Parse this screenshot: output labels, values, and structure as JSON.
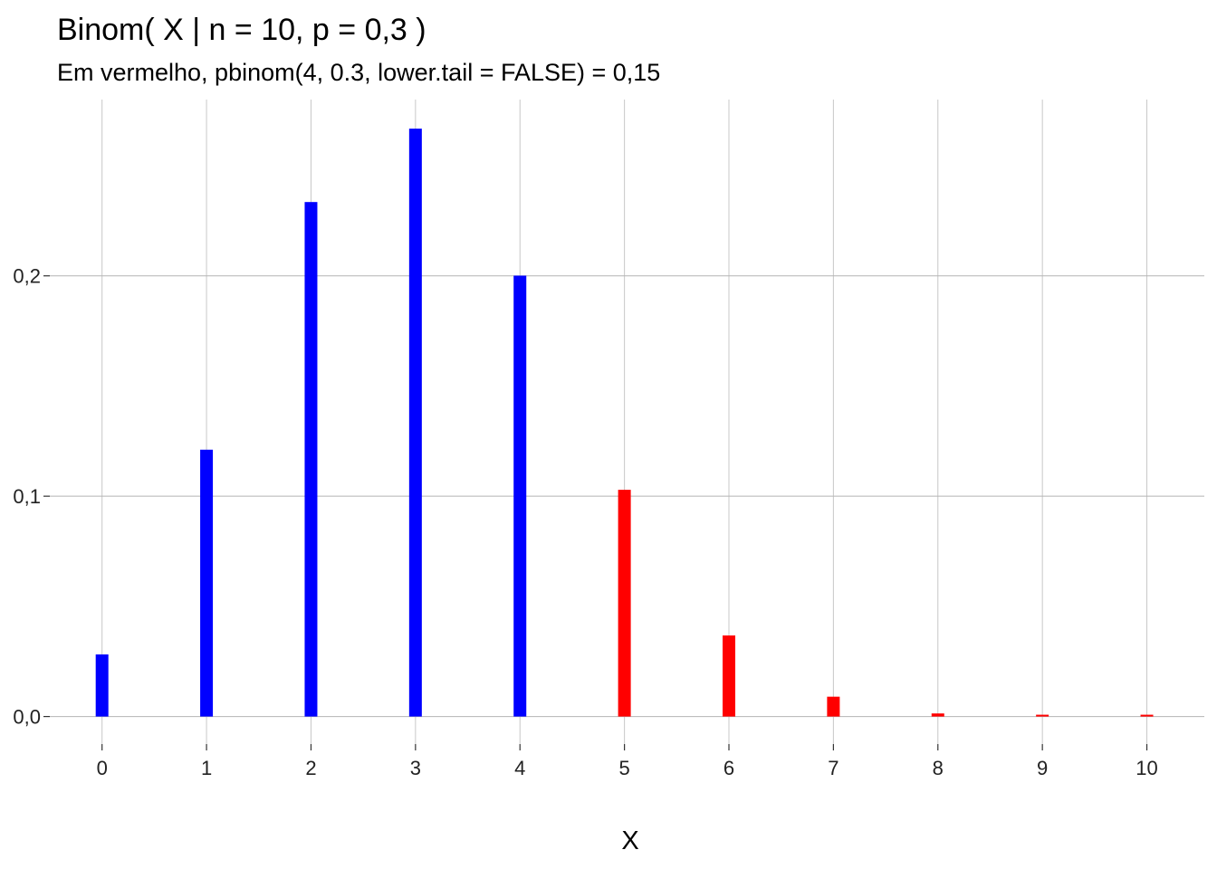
{
  "chart_data": {
    "type": "bar",
    "title": "Binom( X | n = 10, p = 0,3 )",
    "subtitle": "Em vermelho, pbinom(4, 0.3, lower.tail = FALSE) = 0,15",
    "xlabel": "X",
    "ylabel": "",
    "categories": [
      "0",
      "1",
      "2",
      "3",
      "4",
      "5",
      "6",
      "7",
      "8",
      "9",
      "10"
    ],
    "values": [
      0.0282,
      0.1211,
      0.2335,
      0.2668,
      0.2001,
      0.1029,
      0.0368,
      0.009,
      0.0014,
      0.0001,
      0.0
    ],
    "bar_colors": [
      "#0000ff",
      "#0000ff",
      "#0000ff",
      "#0000ff",
      "#0000ff",
      "#ff0000",
      "#ff0000",
      "#ff0000",
      "#ff0000",
      "#ff0000",
      "#ff0000"
    ],
    "highlight_color": "#ff0000",
    "base_color": "#0000ff",
    "y_ticks": [
      0.0,
      0.1,
      0.2
    ],
    "y_tick_labels": [
      "0,0",
      "0,1",
      "0,2"
    ],
    "ylim": [
      -0.0125,
      0.28
    ],
    "xlim": [
      -0.5,
      10.55
    ],
    "grid": true,
    "legend": "none"
  }
}
